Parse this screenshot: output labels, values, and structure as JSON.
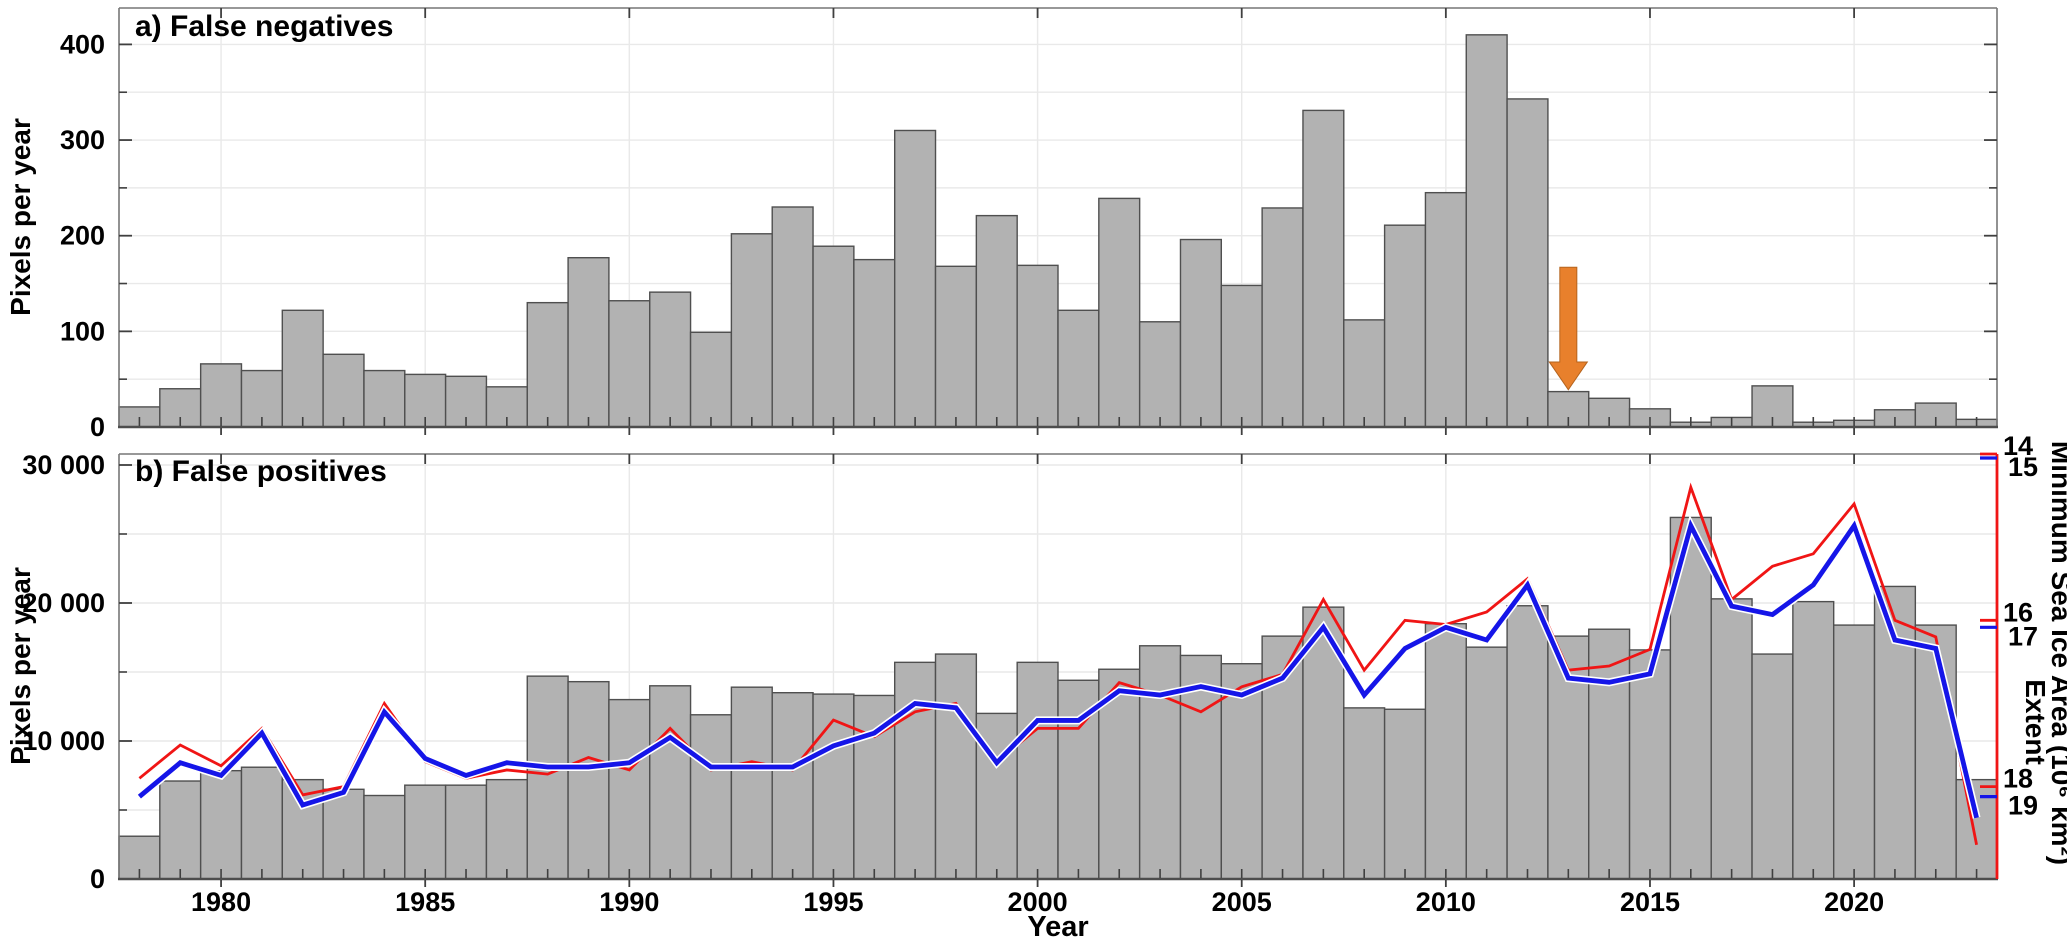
{
  "chart_data": [
    {
      "type": "bar",
      "panel": "a",
      "title": "a) False negatives",
      "ylabel": "Pixels per year",
      "ylim": [
        0,
        438
      ],
      "grid": true,
      "yticks": [
        0,
        100,
        200,
        300,
        400
      ],
      "ytick_labels": [
        "0",
        "100",
        "200",
        "300",
        "400"
      ],
      "minor_y_step": 50,
      "years": [
        1978,
        1979,
        1980,
        1981,
        1982,
        1983,
        1984,
        1985,
        1986,
        1987,
        1988,
        1989,
        1990,
        1991,
        1992,
        1993,
        1994,
        1995,
        1996,
        1997,
        1998,
        1999,
        2000,
        2001,
        2002,
        2003,
        2004,
        2005,
        2006,
        2007,
        2008,
        2009,
        2010,
        2011,
        2012,
        2013,
        2014,
        2015,
        2016,
        2017,
        2018,
        2019,
        2020,
        2021,
        2022,
        2023
      ],
      "values": [
        21,
        40,
        66,
        59,
        122,
        76,
        59,
        55,
        53,
        42,
        130,
        177,
        132,
        141,
        99,
        202,
        230,
        189,
        175,
        310,
        168,
        221,
        169,
        122,
        239,
        110,
        196,
        148,
        229,
        331,
        112,
        211,
        245,
        410,
        343,
        37,
        30,
        19,
        5,
        10,
        43,
        5,
        7,
        18,
        25,
        8
      ],
      "annotation": {
        "type": "down-arrow",
        "year": 2013,
        "color": "#E8802C",
        "from_value": 167,
        "head_value": 68,
        "tip_value": 39
      }
    },
    {
      "type": "bar+line",
      "panel": "b",
      "title": "b) False positives",
      "ylabel": "Pixels per year",
      "xlabel": "Year",
      "ylim": [
        0,
        30800
      ],
      "grid": true,
      "yticks": [
        0,
        10000,
        20000,
        30000
      ],
      "ytick_labels": [
        "0",
        "10 000",
        "20 000",
        "30 000"
      ],
      "minor_y_step": 5000,
      "xticks": [
        1980,
        1985,
        1990,
        1995,
        2000,
        2005,
        2010,
        2015,
        2020
      ],
      "xtick_labels": [
        "1980",
        "1985",
        "1990",
        "1995",
        "2000",
        "2005",
        "2010",
        "2015",
        "2020"
      ],
      "bar_values": [
        3100,
        7100,
        7850,
        8100,
        7200,
        6500,
        6050,
        6800,
        6800,
        7200,
        14700,
        14300,
        13000,
        14000,
        11900,
        13900,
        13500,
        13400,
        13300,
        15700,
        16300,
        12000,
        15700,
        14400,
        15200,
        16900,
        16200,
        15600,
        17600,
        19700,
        12400,
        12300,
        18500,
        16800,
        19800,
        17600,
        18100,
        16600,
        26200,
        20300,
        16300,
        20100,
        18400,
        21200,
        18400,
        7200
      ],
      "series": [
        {
          "name": "Minimum Sea Ice Area",
          "color": "#F01515",
          "values": [
            17.9,
            17.5,
            17.75,
            17.3,
            18.1,
            18.0,
            17.0,
            17.7,
            17.9,
            17.8,
            17.85,
            17.65,
            17.8,
            17.3,
            17.8,
            17.7,
            17.8,
            17.2,
            17.4,
            17.1,
            17.0,
            17.7,
            17.3,
            17.3,
            16.75,
            16.9,
            17.1,
            16.8,
            16.65,
            15.75,
            16.6,
            16.0,
            16.05,
            15.9,
            15.5,
            16.6,
            16.55,
            16.35,
            14.4,
            15.75,
            15.35,
            15.2,
            14.6,
            16.0,
            16.2,
            18.7
          ]
        },
        {
          "name": "Extent",
          "color": "#1515E8",
          "values": [
            19.0,
            18.6,
            18.75,
            18.25,
            19.1,
            18.95,
            18.0,
            18.55,
            18.75,
            18.6,
            18.65,
            18.65,
            18.6,
            18.3,
            18.65,
            18.65,
            18.65,
            18.4,
            18.25,
            17.9,
            17.95,
            18.6,
            18.1,
            18.1,
            17.75,
            17.8,
            17.7,
            17.8,
            17.6,
            17.0,
            17.8,
            17.25,
            17.0,
            17.15,
            16.5,
            17.6,
            17.65,
            17.55,
            15.8,
            16.75,
            16.85,
            16.5,
            15.8,
            17.15,
            17.25,
            19.25
          ]
        }
      ],
      "right_axis": {
        "area_label": "Minimum Sea Ice Area (10⁶ km²)",
        "extent_label": "Extent",
        "inverted": true,
        "area_ticks": [
          14,
          16,
          18
        ],
        "area_tick_labels": [
          "14",
          "16",
          "18"
        ],
        "extent_ticks": [
          15,
          17,
          19
        ],
        "extent_tick_labels": [
          "15",
          "17",
          "19"
        ]
      }
    }
  ],
  "style": {
    "background": "#FFFFFF",
    "bar_fill": "#B2B2B2",
    "bar_edge": "#4F4F4F",
    "grid_color": "#E9E9E9",
    "box_color": "#777777",
    "bottom_axis_color": "#4D4D4D",
    "tick_color": "#3F3F3F",
    "area_line_color": "#F01515",
    "extent_line_color": "#1515E8",
    "extent_halo_color": "#FFFFFF",
    "arrow_color": "#E8802C",
    "text_color": "#000000"
  }
}
